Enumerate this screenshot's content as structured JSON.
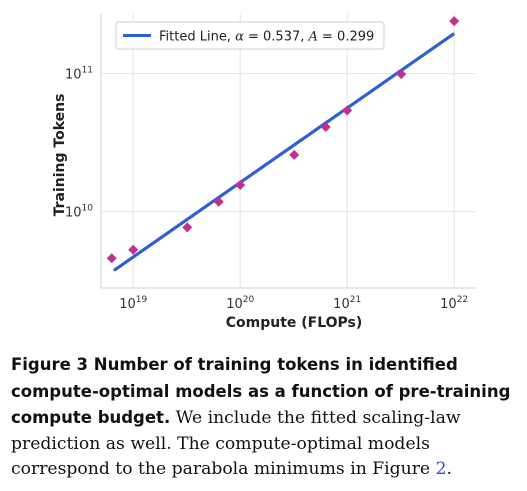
{
  "chart_data": {
    "type": "scatter",
    "xlabel": "Compute (FLOPs)",
    "ylabel": "Training Tokens",
    "xscale": "log",
    "yscale": "log",
    "xlim": [
      5e+18,
      1.6e+22
    ],
    "ylim": [
      2800000000.0,
      270000000000.0
    ],
    "grid": true,
    "legend_position": "top-left",
    "x_ticks": [
      {
        "value": 1e+19,
        "base": "10",
        "exp": "19"
      },
      {
        "value": 1e+20,
        "base": "10",
        "exp": "20"
      },
      {
        "value": 1e+21,
        "base": "10",
        "exp": "21"
      },
      {
        "value": 1e+22,
        "base": "10",
        "exp": "22"
      }
    ],
    "y_ticks": [
      {
        "value": 10000000000.0,
        "base": "10",
        "exp": "10"
      },
      {
        "value": 100000000000.0,
        "base": "10",
        "exp": "11"
      }
    ],
    "series": [
      {
        "kind": "points",
        "color": "#c0308f",
        "marker": "diamond",
        "x": [
          6.3e+18,
          1e+19,
          3.2e+19,
          6.3e+19,
          1e+20,
          3.2e+20,
          6.3e+20,
          1e+21,
          3.2e+21,
          1e+22
        ],
        "y": [
          4600000000.0,
          5300000000.0,
          7700000000.0,
          11800000000.0,
          15600000000.0,
          25800000000.0,
          41000000000.0,
          54000000000.0,
          99000000000.0,
          240000000000.0
        ]
      },
      {
        "kind": "line",
        "color": "#2f5fd7",
        "x": [
          6.6e+18,
          1e+22
        ],
        "y": [
          3750000000.0,
          195000000000.0
        ]
      }
    ],
    "legend": {
      "label_prefix": "Fitted Line, ",
      "alpha_symbol": "α",
      "alpha_text": " = 0.537, ",
      "A_symbol": "A",
      "A_text": " = 0.299"
    }
  },
  "caption": {
    "lead": "Figure 3  Number of training tokens in identified compute-optimal models as a function of pre-training compute budget.",
    "body": " We include the fitted scaling-law prediction as well. The compute-optimal models correspond to the parabola minimums in Figure ",
    "ref": "2",
    "end": "."
  }
}
